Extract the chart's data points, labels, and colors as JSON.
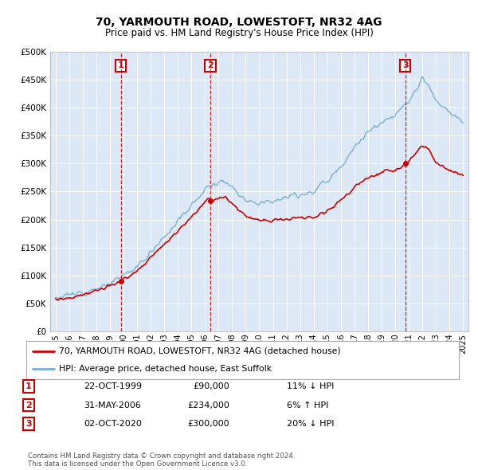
{
  "title": "70, YARMOUTH ROAD, LOWESTOFT, NR32 4AG",
  "subtitle": "Price paid vs. HM Land Registry's House Price Index (HPI)",
  "plot_bg_color": "#dce8f5",
  "ylim": [
    0,
    500000
  ],
  "yticks": [
    0,
    50000,
    100000,
    150000,
    200000,
    250000,
    300000,
    350000,
    400000,
    450000,
    500000
  ],
  "ytick_labels": [
    "£0",
    "£50K",
    "£100K",
    "£150K",
    "£200K",
    "£250K",
    "£300K",
    "£350K",
    "£400K",
    "£450K",
    "£500K"
  ],
  "sales": [
    {
      "num": 1,
      "date": "22-OCT-1999",
      "price": 90000,
      "year": 1999.8,
      "pct": "11%",
      "dir": "↓"
    },
    {
      "num": 2,
      "date": "31-MAY-2006",
      "price": 234000,
      "year": 2006.4,
      "pct": "6%",
      "dir": "↑"
    },
    {
      "num": 3,
      "date": "02-OCT-2020",
      "price": 300000,
      "year": 2020.75,
      "pct": "20%",
      "dir": "↓"
    }
  ],
  "legend_line1": "70, YARMOUTH ROAD, LOWESTOFT, NR32 4AG (detached house)",
  "legend_line2": "HPI: Average price, detached house, East Suffolk",
  "footer1": "Contains HM Land Registry data © Crown copyright and database right 2024.",
  "footer2": "This data is licensed under the Open Government Licence v3.0.",
  "line_color_red": "#cc0000",
  "line_color_blue": "#7ab0d4",
  "vline_color": "#cc0000",
  "box_color": "#cc0000",
  "title_fontsize": 10,
  "subtitle_fontsize": 8.5
}
